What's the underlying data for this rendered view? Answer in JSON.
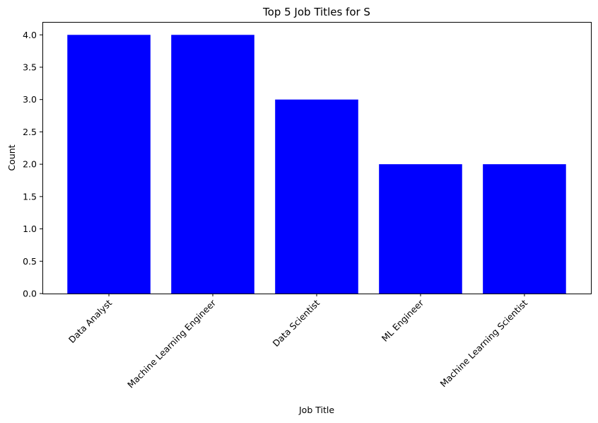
{
  "chart_data": {
    "type": "bar",
    "title": "Top 5 Job Titles for S",
    "xlabel": "Job Title",
    "ylabel": "Count",
    "categories": [
      "Data Analyst",
      "Machine Learning Engineer",
      "Data Scientist",
      "ML Engineer",
      "Machine Learning Scientist"
    ],
    "values": [
      4,
      4,
      3,
      2,
      2
    ],
    "ylim": [
      0,
      4.2
    ],
    "yticks": [
      "0.0",
      "0.5",
      "1.0",
      "1.5",
      "2.0",
      "2.5",
      "3.0",
      "3.5",
      "4.0"
    ],
    "grid": false,
    "bar_color": "#0000ff",
    "xtick_rotation_deg": 45
  }
}
